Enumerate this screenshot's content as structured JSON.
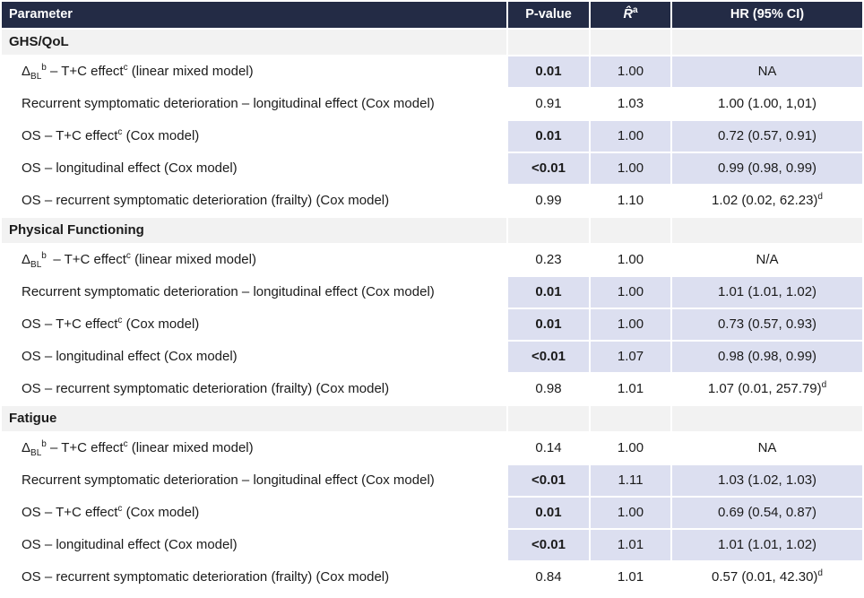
{
  "table": {
    "colors": {
      "header_bg": "#232b45",
      "header_text": "#ffffff",
      "section_bg": "#f2f2f2",
      "highlight_bg": "#dcdff0",
      "body_text": "#1b1b1b"
    },
    "columns": {
      "parameter": "Parameter",
      "pvalue": "P-value",
      "rhat_rich": "<i>R̂</i><sup>a</sup>",
      "hr": "HR (95% CI)"
    },
    "sections": [
      {
        "title": "GHS/QoL",
        "rows": [
          {
            "param": "Δ<sub>BL</sub><sup>b</sup> – T+C effect<sup>c</sup> (linear mixed model)",
            "p": "0.01",
            "r": "1.00",
            "hr": "NA",
            "highlight": true
          },
          {
            "param": "Recurrent symptomatic deterioration – longitudinal effect (Cox model)",
            "p": "0.91",
            "r": "1.03",
            "hr": "1.00 (1.00, 1,01)",
            "highlight": false
          },
          {
            "param": "OS – T+C effect<sup>c</sup> (Cox model)",
            "p": "0.01",
            "r": "1.00",
            "hr": "0.72 (0.57, 0.91)",
            "highlight": true
          },
          {
            "param": "OS – longitudinal effect (Cox model)",
            "p": "<0.01",
            "r": "1.00",
            "hr": "0.99 (0.98, 0.99)",
            "highlight": true
          },
          {
            "param": "OS – recurrent symptomatic deterioration (frailty) (Cox model)",
            "p": "0.99",
            "r": "1.10",
            "hr": "1.02 (0.02, 62.23)<sup>d</sup>",
            "highlight": false
          }
        ]
      },
      {
        "title": "Physical Functioning",
        "rows": [
          {
            "param": "Δ<sub>BL</sub><sup>b</sup> – T+C effect<sup>c</sup> (linear mixed model)",
            "p": "0.23",
            "r": "1.00",
            "hr": "N/A",
            "highlight": false
          },
          {
            "param": "Recurrent symptomatic deterioration – longitudinal effect (Cox model)",
            "p": "0.01",
            "r": "1.00",
            "hr": "1.01 (1.01, 1.02)",
            "highlight": true
          },
          {
            "param": "OS – T+C effect<sup>c</sup> (Cox model)",
            "p": "0.01",
            "r": "1.00",
            "hr": "0.73 (0.57, 0.93)",
            "highlight": true
          },
          {
            "param": "OS – longitudinal effect (Cox model)",
            "p": "<0.01",
            "r": "1.07",
            "hr": "0.98 (0.98, 0.99)",
            "highlight": true
          },
          {
            "param": "OS – recurrent symptomatic deterioration (frailty) (Cox model)",
            "p": "0.98",
            "r": "1.01",
            "hr": "1.07 (0.01, 257.79)<sup>d</sup>",
            "highlight": false
          }
        ]
      },
      {
        "title": "Fatigue",
        "rows": [
          {
            "param": "Δ<sub>BL</sub><sup>b</sup> – T+C effect<sup>c</sup> (linear mixed model)",
            "p": "0.14",
            "r": "1.00",
            "hr": "NA",
            "highlight": false
          },
          {
            "param": "Recurrent symptomatic deterioration – longitudinal effect (Cox model)",
            "p": "<0.01",
            "r": "1.11",
            "hr": "1.03 (1.02, 1.03)",
            "highlight": true
          },
          {
            "param": "OS – T+C effect<sup>c</sup> (Cox model)",
            "p": "0.01",
            "r": "1.00",
            "hr": "0.69 (0.54, 0.87)",
            "highlight": true
          },
          {
            "param": "OS – longitudinal effect (Cox model)",
            "p": "<0.01",
            "r": "1.01",
            "hr": "1.01 (1.01, 1.02)",
            "highlight": true
          },
          {
            "param": "OS – recurrent symptomatic deterioration (frailty) (Cox model)",
            "p": "0.84",
            "r": "1.01",
            "hr": "0.57 (0.01, 42.30)<sup>d</sup>",
            "highlight": false
          }
        ]
      }
    ]
  }
}
